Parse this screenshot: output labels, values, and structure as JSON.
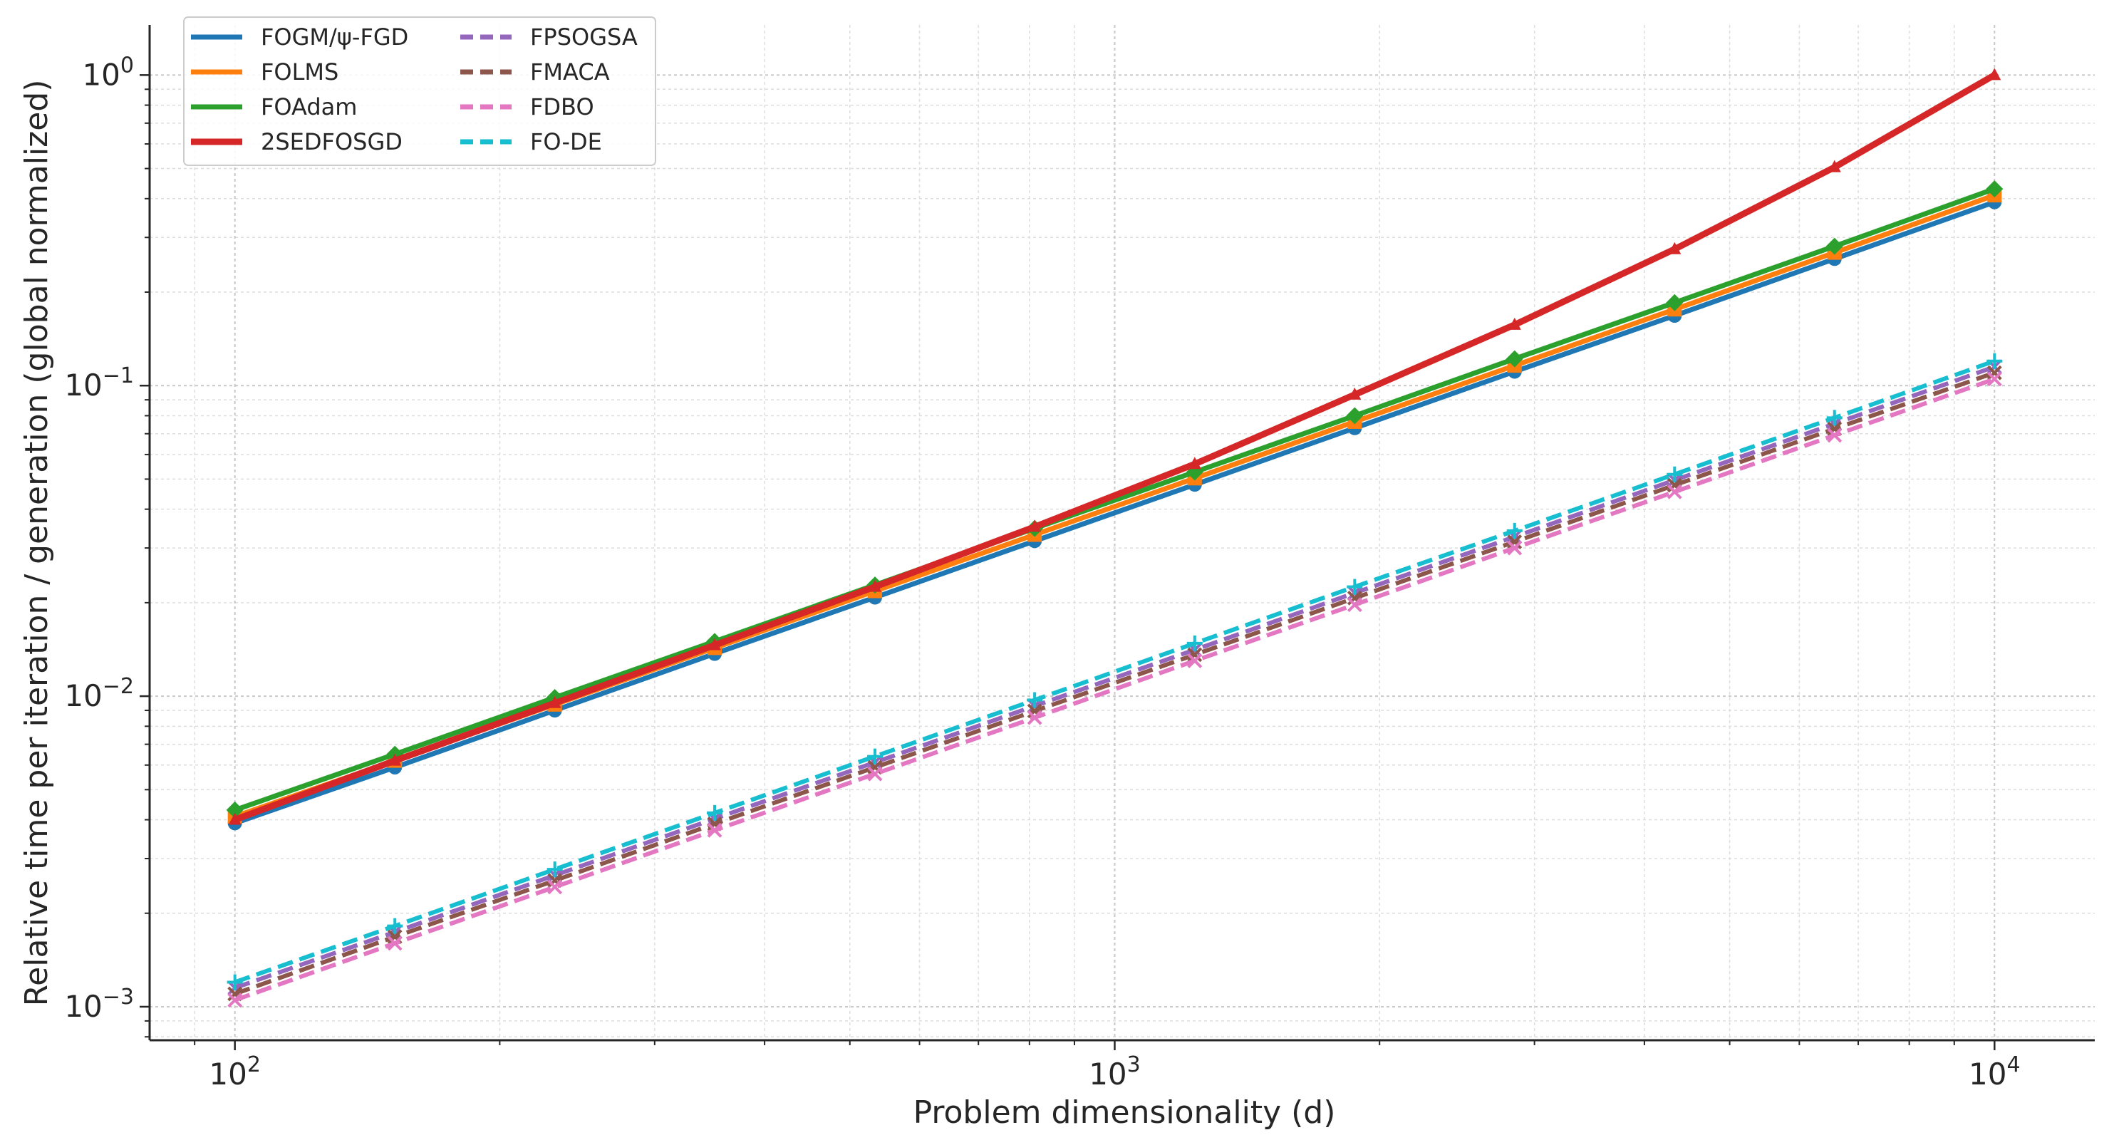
{
  "chart_data": {
    "type": "line",
    "title": "",
    "xlabel": "Problem dimensionality (d)",
    "ylabel": "Relative time per iteration / generation (global normalized)",
    "xscale": "log",
    "yscale": "log",
    "xlim": [
      80,
      13000
    ],
    "ylim": [
      0.00078,
      1.45
    ],
    "grid": true,
    "legend_position": "top-left",
    "x_ticks": [
      {
        "value": 100,
        "base": "10",
        "exp": "2"
      },
      {
        "value": 1000,
        "base": "10",
        "exp": "3"
      },
      {
        "value": 10000,
        "base": "10",
        "exp": "4"
      }
    ],
    "y_ticks": [
      {
        "value": 0.001,
        "base": "10",
        "exp": "−3"
      },
      {
        "value": 0.01,
        "base": "10",
        "exp": "−2"
      },
      {
        "value": 0.1,
        "base": "10",
        "exp": "−1"
      },
      {
        "value": 1,
        "base": "10",
        "exp": "0"
      }
    ],
    "x": [
      100,
      152,
      231,
      351,
      534,
      811,
      1233,
      1874,
      2848,
      4329,
      6579,
      10000
    ],
    "series": [
      {
        "name": "FOGM/ψ-FGD",
        "color": "#1f77b4",
        "style": "solid",
        "marker": "circle",
        "values": [
          0.0039,
          0.0059,
          0.009,
          0.0137,
          0.0208,
          0.0316,
          0.048,
          0.073,
          0.111,
          0.168,
          0.256,
          0.39
        ]
      },
      {
        "name": "FOLMS",
        "color": "#ff7f0e",
        "style": "solid",
        "marker": "square",
        "values": [
          0.0041,
          0.0062,
          0.0094,
          0.0143,
          0.0218,
          0.0331,
          0.0503,
          0.0765,
          0.116,
          0.176,
          0.268,
          0.41
        ]
      },
      {
        "name": "FOAdam",
        "color": "#2ca02c",
        "style": "solid",
        "marker": "diamond",
        "values": [
          0.0043,
          0.0065,
          0.0099,
          0.015,
          0.0228,
          0.0347,
          0.0527,
          0.08,
          0.122,
          0.185,
          0.281,
          0.43
        ]
      },
      {
        "name": "2SEDFOSGD",
        "color": "#d62728",
        "style": "solid",
        "marker": "triangle",
        "values": [
          0.004,
          0.0062,
          0.0095,
          0.0146,
          0.0225,
          0.0351,
          0.0559,
          0.0935,
          0.157,
          0.275,
          0.505,
          1.0
        ]
      },
      {
        "name": "FPSOGSA",
        "color": "#9467bd",
        "style": "dashed",
        "marker": "x",
        "values": [
          0.00115,
          0.00174,
          0.00265,
          0.00403,
          0.00612,
          0.0093,
          0.0141,
          0.0215,
          0.0326,
          0.0496,
          0.0754,
          0.115
        ]
      },
      {
        "name": "FMACA",
        "color": "#8c564b",
        "style": "dashed",
        "marker": "x",
        "values": [
          0.0011,
          0.00168,
          0.00255,
          0.00388,
          0.0059,
          0.00896,
          0.0136,
          0.0207,
          0.0314,
          0.0478,
          0.0726,
          0.11
        ]
      },
      {
        "name": "FDBO",
        "color": "#e377c2",
        "style": "dashed",
        "marker": "x",
        "values": [
          0.00105,
          0.0016,
          0.00243,
          0.0037,
          0.00562,
          0.00853,
          0.013,
          0.0197,
          0.03,
          0.0455,
          0.0692,
          0.105
        ]
      },
      {
        "name": "FO-DE",
        "color": "#17becf",
        "style": "dashed",
        "marker": "plus",
        "values": [
          0.0012,
          0.00182,
          0.00277,
          0.00421,
          0.0064,
          0.00972,
          0.0148,
          0.0225,
          0.0341,
          0.0518,
          0.0788,
          0.12
        ]
      }
    ]
  }
}
